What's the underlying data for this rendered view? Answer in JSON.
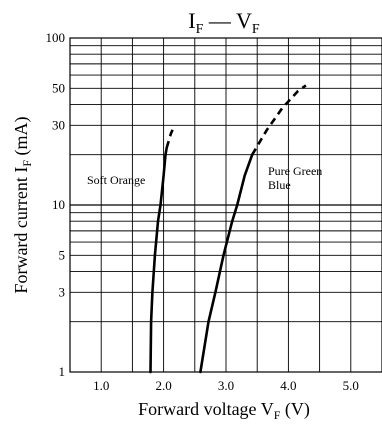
{
  "chart_data": {
    "type": "line",
    "title": {
      "main": "I",
      "sub1": "F",
      "dash": " — ",
      "main2": "V",
      "sub2": "F"
    },
    "xlabel": {
      "text": "Forward voltage  V",
      "sub": "F",
      "unit": "  (V)"
    },
    "ylabel": {
      "text": "Forward current  I",
      "sub": "F",
      "unit": "  (mA)"
    },
    "xlim": [
      0.5,
      5.5
    ],
    "ylim": [
      1,
      100
    ],
    "yscale": "log",
    "grid": true,
    "x_ticks": [
      1.0,
      2.0,
      3.0,
      4.0,
      5.0
    ],
    "x_tick_labels": [
      "1.0",
      "2.0",
      "3.0",
      "4.0",
      "5.0"
    ],
    "y_tick_labels": [
      {
        "value": 1,
        "label": "1"
      },
      {
        "value": 3,
        "label": "3"
      },
      {
        "value": 5,
        "label": "5"
      },
      {
        "value": 10,
        "label": "10"
      },
      {
        "value": 30,
        "label": "30"
      },
      {
        "value": 50,
        "label": "50"
      },
      {
        "value": 100,
        "label": "100"
      }
    ],
    "series": [
      {
        "name": "Soft Orange",
        "color": "#000000",
        "solid": [
          [
            1.79,
            1
          ],
          [
            1.8,
            2
          ],
          [
            1.82,
            3
          ],
          [
            1.86,
            5
          ],
          [
            1.91,
            8
          ],
          [
            1.95,
            10
          ],
          [
            2.0,
            15
          ],
          [
            2.03,
            20
          ],
          [
            2.05,
            22
          ]
        ],
        "dashed": [
          [
            2.05,
            22
          ],
          [
            2.12,
            27
          ],
          [
            2.18,
            30
          ]
        ]
      },
      {
        "name": "Pure Green\nBlue",
        "color": "#000000",
        "solid": [
          [
            2.59,
            1
          ],
          [
            2.72,
            2
          ],
          [
            2.83,
            3
          ],
          [
            2.96,
            5
          ],
          [
            3.1,
            8
          ],
          [
            3.18,
            10
          ],
          [
            3.3,
            15
          ],
          [
            3.42,
            20
          ]
        ],
        "dashed": [
          [
            3.42,
            20
          ],
          [
            3.65,
            28
          ],
          [
            3.9,
            38
          ],
          [
            4.15,
            48
          ],
          [
            4.28,
            52
          ]
        ]
      }
    ]
  }
}
